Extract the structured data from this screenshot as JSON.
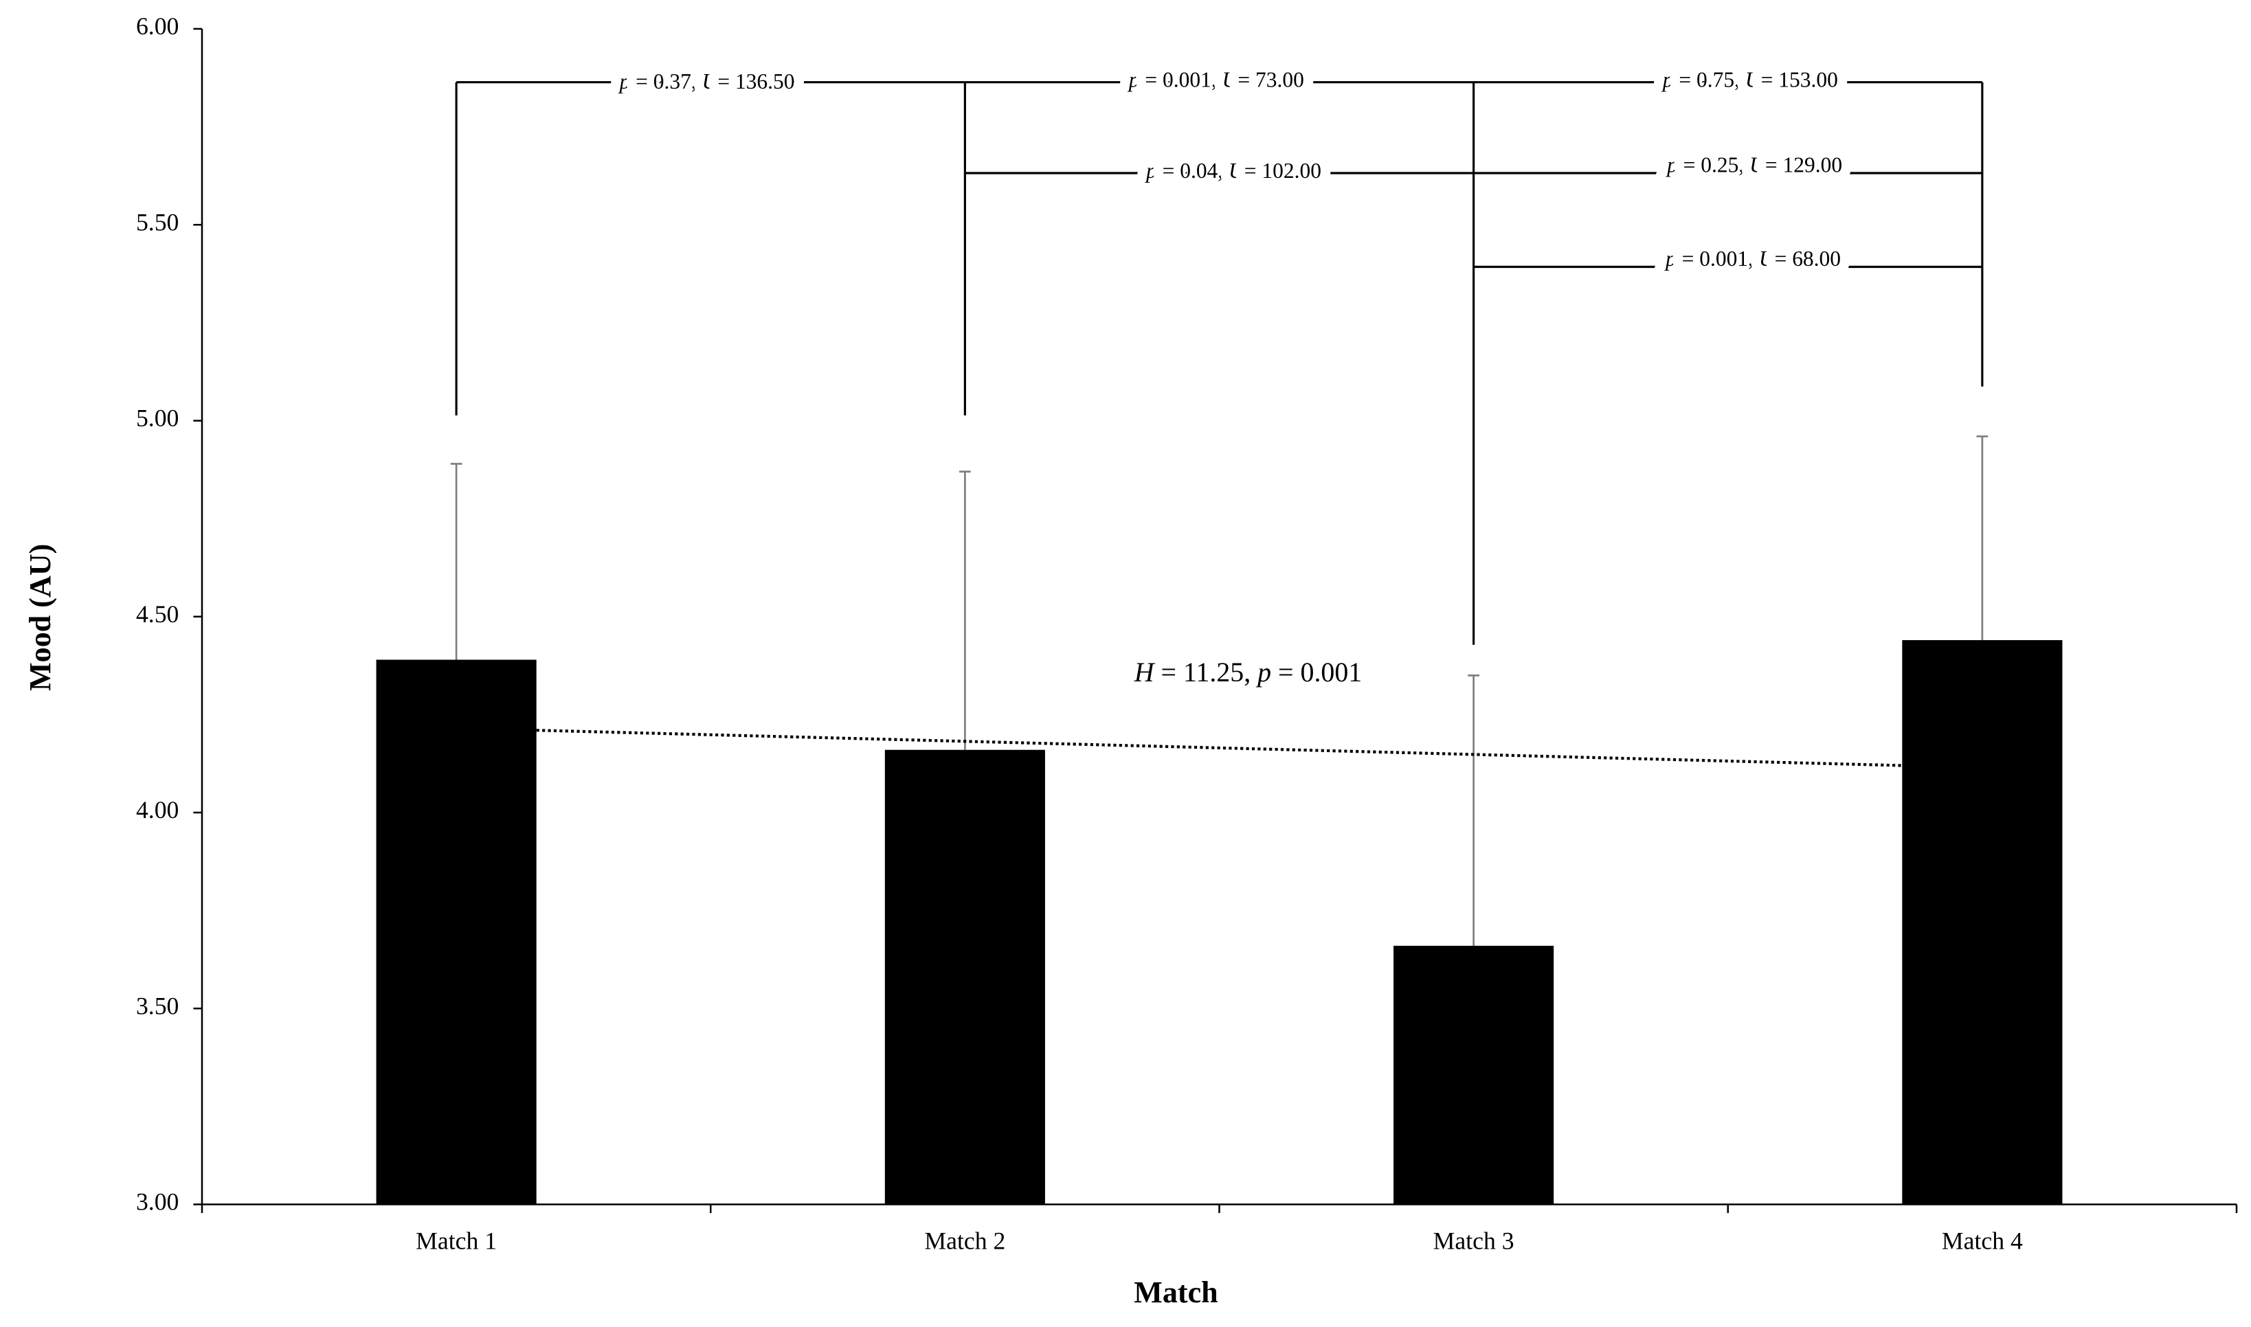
{
  "chart_data": {
    "type": "bar",
    "x_label": "Match",
    "y_label": "Mood (AU)",
    "categories": [
      "Match 1",
      "Match 2",
      "Match 3",
      "Match 4"
    ],
    "values": [
      4.39,
      4.16,
      3.66,
      4.44
    ],
    "errors": [
      0.5,
      0.71,
      0.69,
      0.52
    ],
    "color": "#000000",
    "error_color": "#808080",
    "ylim": [
      3,
      6
    ],
    "yticks": [
      {
        "value": 3,
        "label": "3.00"
      },
      {
        "value": 3.5,
        "label": "3.50"
      },
      {
        "value": 4,
        "label": "4.00"
      },
      {
        "value": 4.5,
        "label": "4.50"
      },
      {
        "value": 5,
        "label": "5.00"
      },
      {
        "value": 5.5,
        "label": "5.50"
      },
      {
        "value": 6,
        "label": "6.00"
      }
    ],
    "trendline": [
      4.21,
      4.12
    ],
    "annotations": [
      [
        "p",
        " = 0.37, ",
        "U",
        "= 136.50"
      ],
      [
        "p",
        " = 0.001, ",
        "U",
        "= 73.00"
      ],
      [
        "p",
        " = 0.75, ",
        "U",
        "= 153.00"
      ],
      [
        "p",
        " = 0.04, ",
        "U",
        "= 102.00"
      ],
      [
        "p",
        " = 0.25, ",
        "U",
        "= 129.00"
      ],
      [
        "p",
        " = 0.001, ",
        "U",
        "= 68.00"
      ]
    ],
    "test_annotation": [
      "H",
      " = 11.25, ",
      "p",
      " = 0.001"
    ]
  }
}
